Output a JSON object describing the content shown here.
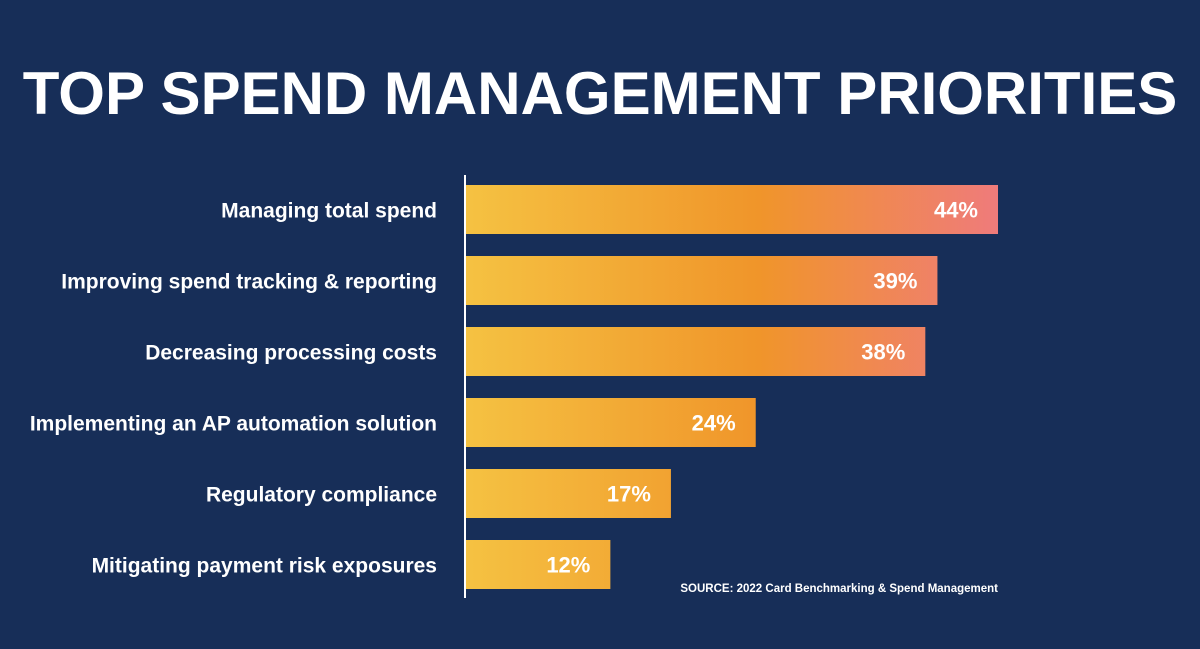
{
  "chart_data": {
    "type": "bar",
    "orientation": "horizontal",
    "title": "TOP SPEND MANAGEMENT PRIORITIES",
    "categories": [
      "Managing total spend",
      "Improving spend tracking  & reporting",
      "Decreasing processing costs",
      "Implementing an AP automation solution",
      "Regulatory compliance",
      "Mitigating payment risk exposures"
    ],
    "values": [
      44,
      39,
      38,
      24,
      17,
      12
    ],
    "value_labels": [
      "44%",
      "39%",
      "38%",
      "24%",
      "17%",
      "12%"
    ],
    "unit": "%",
    "xlim": [
      0,
      44
    ],
    "grid": false,
    "legend": "none",
    "source": "SOURCE: 2022 Card Benchmarking & Spend Management"
  },
  "colors": {
    "background": "#172e58",
    "text": "#ffffff",
    "axis": "#ffffff",
    "bar_start": "#f5c242",
    "bar_mid": "#f0952a",
    "bar_end": "#ef7b7b"
  }
}
